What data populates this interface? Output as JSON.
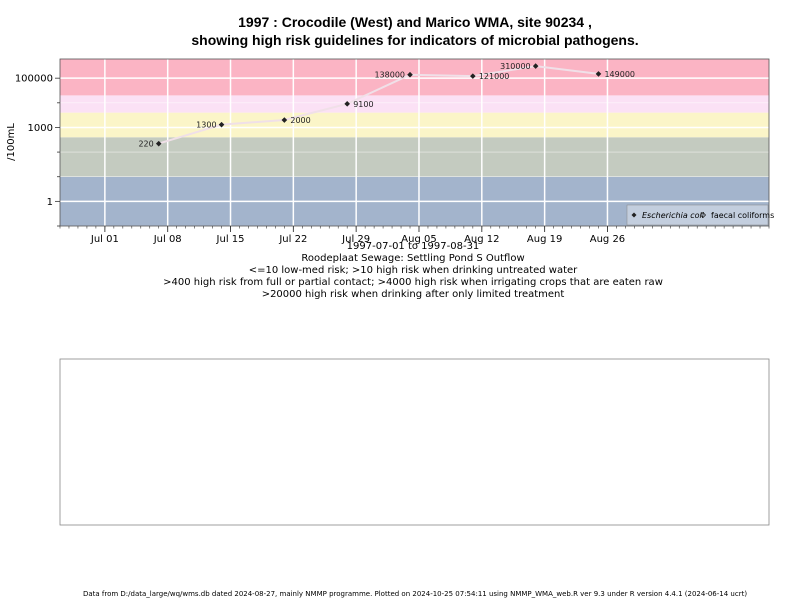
{
  "chart_data": {
    "type": "line",
    "title_line1": "1997 : Crocodile (West) and Marico WMA, site 90234 ,",
    "title_line2": "showing high risk guidelines for indicators of microbial pathogens.",
    "ylabel": "/100mL",
    "y_scale": "log",
    "ylim": [
      0.1,
      600000
    ],
    "xlim": [
      "1997-06-26",
      "1997-09-13"
    ],
    "y_ticks": [
      {
        "value": 1,
        "label": "1"
      },
      {
        "value": 1000,
        "label": "1000"
      },
      {
        "value": 100000,
        "label": "100000"
      }
    ],
    "x_ticks": [
      {
        "date": "1997-07-01",
        "label": "Jul 01"
      },
      {
        "date": "1997-07-08",
        "label": "Jul 08"
      },
      {
        "date": "1997-07-15",
        "label": "Jul 15"
      },
      {
        "date": "1997-07-22",
        "label": "Jul 22"
      },
      {
        "date": "1997-07-29",
        "label": "Jul 29"
      },
      {
        "date": "1997-08-05",
        "label": "Aug 05"
      },
      {
        "date": "1997-08-12",
        "label": "Aug 12"
      },
      {
        "date": "1997-08-19",
        "label": "Aug 19"
      },
      {
        "date": "1997-08-26",
        "label": "Aug 26"
      }
    ],
    "bands": [
      {
        "from": 0.1,
        "to": 10,
        "color": "#a3b4cc"
      },
      {
        "from": 10,
        "to": 400,
        "color": "#c4cbc0"
      },
      {
        "from": 400,
        "to": 4000,
        "color": "#fbf5c8"
      },
      {
        "from": 4000,
        "to": 20000,
        "color": "#fbe1f5"
      },
      {
        "from": 20000,
        "to": 600000,
        "color": "#fbb4c4"
      }
    ],
    "series": [
      {
        "name": "Escherichia coli",
        "marker": "filled-diamond",
        "line_color": "#f0e0e8",
        "points": [
          {
            "date": "1997-07-07",
            "value": 220,
            "label": "220",
            "label_side": "left"
          },
          {
            "date": "1997-07-14",
            "value": 1300,
            "label": "1300",
            "label_side": "left"
          },
          {
            "date": "1997-07-21",
            "value": 2000,
            "label": "2000",
            "label_side": "right"
          },
          {
            "date": "1997-07-28",
            "value": 9100,
            "label": "9100",
            "label_side": "right"
          },
          {
            "date": "1997-08-04",
            "value": 138000,
            "label": "138000",
            "label_side": "left"
          },
          {
            "date": "1997-08-11",
            "value": 121000,
            "label": "121000",
            "label_side": "right"
          },
          {
            "date": "1997-08-18",
            "value": 310000,
            "label": "310000",
            "label_side": "left"
          },
          {
            "date": "1997-08-25",
            "value": 149000,
            "label": "149000",
            "label_side": "right"
          }
        ]
      }
    ],
    "legend": {
      "placement": "bottom-right",
      "entries": [
        {
          "label": "Escherichia coli",
          "marker": "filled-diamond",
          "italic": true
        },
        {
          "label": "faecal coliforms",
          "marker": "open-diamond",
          "italic": false
        }
      ]
    },
    "date_range": "1997-07-01 to 1997-08-31",
    "caption_lines": [
      "Roodeplaat Sewage: Settling Pond S Outflow",
      "<=10 low-med risk; >10 high risk when drinking untreated water",
      ">400 high risk from full or partial contact; >4000 high risk when irrigating crops that are eaten raw",
      ">20000 high risk when drinking after only limited treatment"
    ]
  },
  "footer": "Data from D:/data_large/wq/wms.db dated 2024-08-27, mainly NMMP programme. Plotted on 2024-10-25 07:54:11 using NMMP_WMA_web.R ver 9.3 under R version 4.4.1 (2024-06-14 ucrt)"
}
